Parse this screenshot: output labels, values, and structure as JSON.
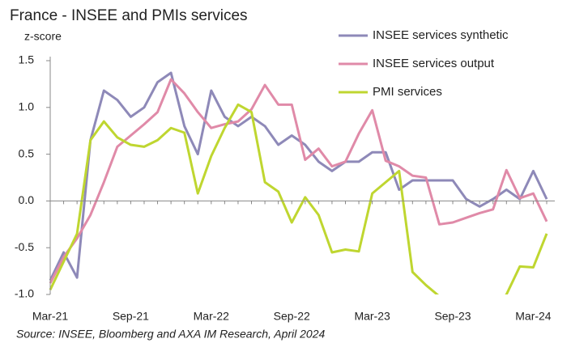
{
  "chart_data": {
    "type": "line",
    "title": "France - INSEE and PMIs services",
    "y_label": "z-score",
    "source": "Source: INSEE, Bloomberg and AXA IM Research, April 2024",
    "categories": [
      "Mar-21",
      null,
      null,
      null,
      null,
      null,
      "Sep-21",
      null,
      null,
      null,
      null,
      null,
      "Mar-22",
      null,
      null,
      null,
      null,
      null,
      "Sep-22",
      null,
      null,
      null,
      null,
      null,
      "Mar-23",
      null,
      null,
      null,
      null,
      null,
      "Sep-23",
      null,
      null,
      null,
      null,
      null,
      "Mar-24",
      null
    ],
    "series": [
      {
        "name": "INSEE services synthetic",
        "color": "#8e89b8",
        "values": [
          -0.85,
          -0.55,
          -0.82,
          0.65,
          1.18,
          1.08,
          0.9,
          1.0,
          1.27,
          1.37,
          0.8,
          0.5,
          1.18,
          0.9,
          0.8,
          0.9,
          0.8,
          0.6,
          0.7,
          0.6,
          0.42,
          0.32,
          0.42,
          0.42,
          0.52,
          0.52,
          0.12,
          0.22,
          0.22,
          0.22,
          0.22,
          0.02,
          -0.06,
          0.02,
          0.12,
          0.02,
          0.32,
          0.02
        ]
      },
      {
        "name": "INSEE services output",
        "color": "#e08aa8",
        "values": [
          -0.88,
          -0.6,
          -0.4,
          -0.15,
          0.2,
          0.58,
          0.7,
          0.82,
          0.95,
          1.3,
          1.15,
          0.95,
          0.78,
          0.82,
          0.85,
          0.98,
          1.24,
          1.03,
          1.03,
          0.44,
          0.56,
          0.37,
          0.42,
          0.72,
          0.97,
          0.43,
          0.37,
          0.27,
          0.25,
          -0.25,
          -0.23,
          -0.18,
          -0.13,
          -0.09,
          0.33,
          0.03,
          0.08,
          -0.22
        ]
      },
      {
        "name": "PMI services",
        "color": "#bfd630",
        "values": [
          -0.95,
          -0.65,
          -0.35,
          0.65,
          0.85,
          0.68,
          0.6,
          0.58,
          0.65,
          0.78,
          0.73,
          0.08,
          0.48,
          0.78,
          1.03,
          0.95,
          0.2,
          0.1,
          -0.23,
          0.04,
          -0.15,
          -0.55,
          -0.52,
          -0.54,
          0.08,
          0.2,
          0.32,
          -0.76,
          -0.9,
          -1.02,
          -1.15,
          -1.25,
          -1.25,
          -1.15,
          -1.0,
          -0.7,
          -0.71,
          -0.35
        ]
      }
    ],
    "ylim": [
      -1.0,
      1.5
    ],
    "yticks": [
      {
        "value": -1.0,
        "label": "-1.0"
      },
      {
        "value": -0.5,
        "label": "-0.5"
      },
      {
        "value": 0,
        "label": "0.0"
      },
      {
        "value": 0.5,
        "label": "0.5"
      },
      {
        "value": 1.0,
        "label": "1.0"
      },
      {
        "value": 1.5,
        "label": "1.5"
      }
    ],
    "legend": "top-right"
  }
}
